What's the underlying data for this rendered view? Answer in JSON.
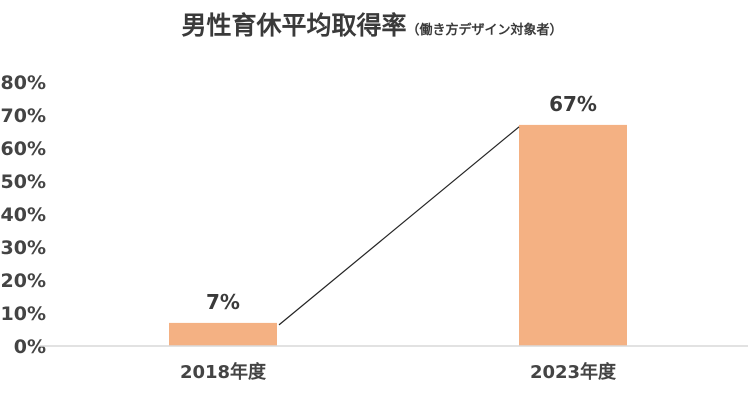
{
  "chart_data": {
    "type": "bar",
    "title": "男性育休平均取得率",
    "subtitle": "（働き方デザイン対象者）",
    "categories": [
      "2018年度",
      "2023年度"
    ],
    "values": [
      7,
      67
    ],
    "data_labels": [
      "7%",
      "67%"
    ],
    "ylim": [
      0,
      80
    ],
    "yticks": [
      "0%",
      "10%",
      "20%",
      "30%",
      "40%",
      "50%",
      "60%",
      "70%",
      "80%"
    ],
    "grid": false,
    "legend": "none",
    "bar_color": "#f4b183",
    "connector_line": true
  }
}
